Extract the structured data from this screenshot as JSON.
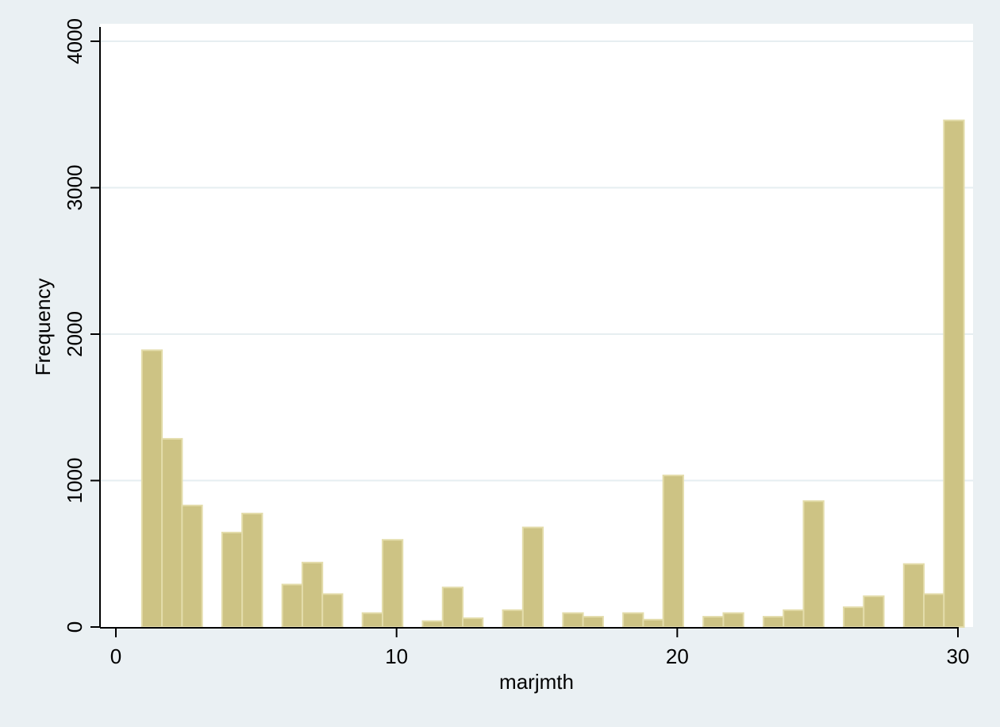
{
  "chart_data": {
    "type": "bar",
    "title": "",
    "xlabel": "marjmth",
    "ylabel": "Frequency",
    "xlim": [
      0,
      30
    ],
    "ylim": [
      0,
      4000
    ],
    "xticks": [
      0,
      10,
      20,
      30
    ],
    "yticks": [
      0,
      1000,
      2000,
      3000,
      4000
    ],
    "grid": "horizontal",
    "bin_width": 0.7143,
    "colors": {
      "background": "#eaf0f3",
      "plot_area": "#ffffff",
      "bar_fill": "#cdc384",
      "bar_edge": "#e3dcaa",
      "grid": "#e6eef1",
      "axis": "#000000"
    },
    "bins": [
      {
        "x0": 0.9286,
        "value": 1890
      },
      {
        "x0": 1.6429,
        "value": 1285
      },
      {
        "x0": 2.3571,
        "value": 830
      },
      {
        "x0": 3.7857,
        "value": 645
      },
      {
        "x0": 4.5,
        "value": 775
      },
      {
        "x0": 5.9286,
        "value": 290
      },
      {
        "x0": 6.6429,
        "value": 440
      },
      {
        "x0": 7.3571,
        "value": 225
      },
      {
        "x0": 8.7857,
        "value": 95
      },
      {
        "x0": 9.5,
        "value": 595
      },
      {
        "x0": 10.9286,
        "value": 40
      },
      {
        "x0": 11.6429,
        "value": 270
      },
      {
        "x0": 12.3571,
        "value": 60
      },
      {
        "x0": 13.7857,
        "value": 115
      },
      {
        "x0": 14.5,
        "value": 680
      },
      {
        "x0": 15.9286,
        "value": 95
      },
      {
        "x0": 16.6429,
        "value": 70
      },
      {
        "x0": 18.0714,
        "value": 95
      },
      {
        "x0": 18.7857,
        "value": 50
      },
      {
        "x0": 19.5,
        "value": 1035
      },
      {
        "x0": 20.9286,
        "value": 70
      },
      {
        "x0": 21.6429,
        "value": 95
      },
      {
        "x0": 23.0714,
        "value": 70
      },
      {
        "x0": 23.7857,
        "value": 115
      },
      {
        "x0": 24.5,
        "value": 860
      },
      {
        "x0": 25.9286,
        "value": 135
      },
      {
        "x0": 26.6429,
        "value": 210
      },
      {
        "x0": 28.0714,
        "value": 430
      },
      {
        "x0": 28.7857,
        "value": 225
      },
      {
        "x0": 29.5,
        "value": 3460
      }
    ]
  }
}
